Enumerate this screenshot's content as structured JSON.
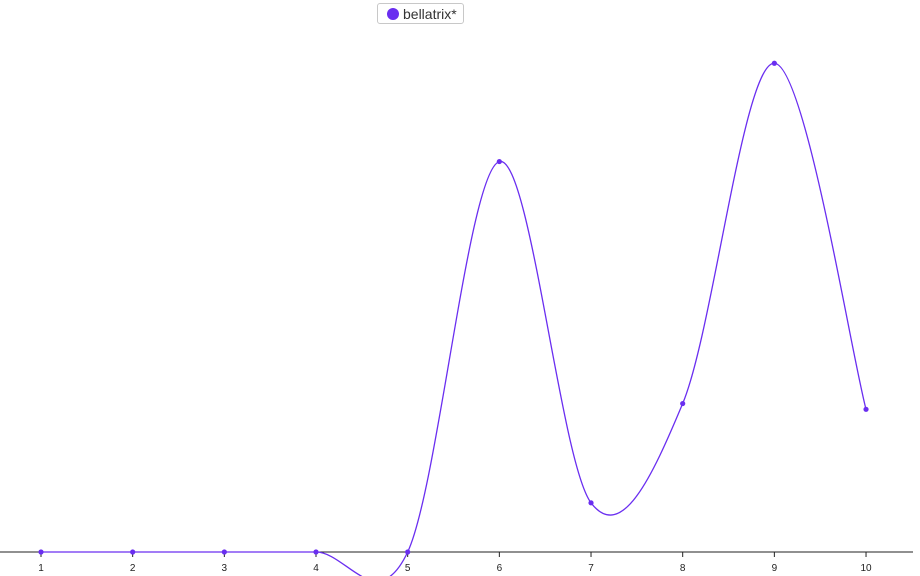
{
  "chart_data": {
    "type": "line",
    "smooth": true,
    "x": [
      1,
      2,
      3,
      4,
      5,
      6,
      7,
      8,
      9,
      10
    ],
    "series": [
      {
        "name": "bellatrix*",
        "color": "#6a2ef0",
        "values": [
          0,
          0,
          0,
          0,
          0,
          4.05,
          0.51,
          1.54,
          5.07,
          1.48
        ]
      }
    ],
    "ylim": [
      0,
      5.28
    ],
    "xlabel": "",
    "ylabel": "",
    "grid": false,
    "legend": "top-center",
    "show_points": true
  }
}
